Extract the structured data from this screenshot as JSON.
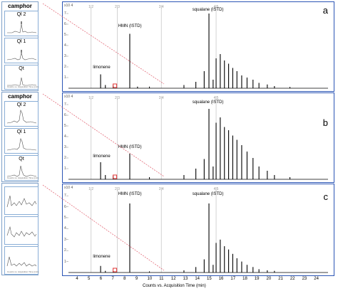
{
  "insets": {
    "group_a": {
      "title": "camphor",
      "boxes": [
        {
          "label": "Ql 2"
        },
        {
          "label": "Ql 1"
        },
        {
          "label": "Qt"
        }
      ],
      "axis_caption": "Counts vs. Acquisition Time (min)"
    },
    "group_b": {
      "title": "camphor",
      "boxes": [
        {
          "label": "Ql 2"
        },
        {
          "label": "Ql 1"
        },
        {
          "label": "Qt"
        }
      ],
      "axis_caption": "Counts vs. Acquisition Time (min)"
    },
    "group_c": {
      "title": "",
      "boxes": [
        {
          "label": ""
        },
        {
          "label": ""
        },
        {
          "label": ""
        }
      ],
      "axis_caption": "Counts vs. Acquisition Time (min)"
    }
  },
  "colors": {
    "panel_border": "#2b55b5",
    "inset_border": "#8aaed6",
    "connector": "#e05a6a",
    "marker": "#e03030",
    "trace": "#000000",
    "marker_line": "#c8c8c8"
  },
  "chart_data": [
    {
      "type": "line",
      "panel_letter": "a",
      "y_unit": "x10 4",
      "y_ticks": [
        "7",
        "6",
        "5",
        "4",
        "3",
        "2",
        "1"
      ],
      "x_range": [
        3.2,
        25.0
      ],
      "y_range": [
        0,
        7.4
      ],
      "time_markers": [
        {
          "x": 5.1,
          "label": "1|2"
        },
        {
          "x": 7.3,
          "label": "2|3"
        },
        {
          "x": 11.0,
          "label": "3|4"
        },
        {
          "x": 15.6,
          "label": "4|5"
        }
      ],
      "annotations": [
        {
          "text": "limonene",
          "x": 6.0,
          "y": 1.6
        },
        {
          "text": "HMN (ISTD)",
          "x": 8.3,
          "y": 5.5
        },
        {
          "text": "squalane (ISTD)",
          "x": 15.0,
          "y": 7.0
        }
      ],
      "peaks": [
        [
          5.9,
          1.3
        ],
        [
          6.3,
          0.3
        ],
        [
          6.95,
          0.25
        ],
        [
          8.35,
          5.1
        ],
        [
          9.0,
          0.15
        ],
        [
          10.0,
          0.15
        ],
        [
          12.9,
          0.3
        ],
        [
          13.9,
          0.6
        ],
        [
          14.6,
          1.6
        ],
        [
          15.0,
          7.0
        ],
        [
          15.35,
          0.8
        ],
        [
          15.6,
          2.8
        ],
        [
          15.95,
          3.2
        ],
        [
          16.3,
          2.6
        ],
        [
          16.65,
          2.3
        ],
        [
          17.0,
          1.9
        ],
        [
          17.35,
          1.6
        ],
        [
          17.75,
          1.2
        ],
        [
          18.2,
          1.0
        ],
        [
          18.7,
          0.8
        ],
        [
          19.2,
          0.5
        ],
        [
          19.9,
          0.35
        ],
        [
          20.5,
          0.2
        ],
        [
          21.8,
          0.12
        ]
      ]
    },
    {
      "type": "line",
      "panel_letter": "b",
      "y_unit": "x10 4",
      "y_ticks": [
        "7",
        "6",
        "5",
        "4",
        "3",
        "2",
        "1"
      ],
      "x_range": [
        3.2,
        25.0
      ],
      "y_range": [
        0,
        7.4
      ],
      "time_markers": [
        {
          "x": 5.1,
          "label": "1|2"
        },
        {
          "x": 7.3,
          "label": "2|3"
        },
        {
          "x": 11.0,
          "label": "3|4"
        },
        {
          "x": 15.6,
          "label": "4|5"
        }
      ],
      "annotations": [
        {
          "text": "limonene",
          "x": 6.0,
          "y": 1.8
        },
        {
          "text": "HMN (ISTD)",
          "x": 8.3,
          "y": 2.7
        },
        {
          "text": "squalane (ISTD)",
          "x": 15.0,
          "y": 6.9
        }
      ],
      "peaks": [
        [
          5.9,
          1.6
        ],
        [
          6.3,
          0.4
        ],
        [
          6.95,
          0.3
        ],
        [
          8.35,
          2.4
        ],
        [
          10.0,
          0.2
        ],
        [
          12.9,
          0.4
        ],
        [
          13.9,
          1.0
        ],
        [
          14.6,
          1.9
        ],
        [
          15.0,
          6.6
        ],
        [
          15.35,
          1.2
        ],
        [
          15.6,
          5.3
        ],
        [
          15.95,
          5.8
        ],
        [
          16.3,
          4.9
        ],
        [
          16.65,
          4.6
        ],
        [
          17.0,
          4.1
        ],
        [
          17.35,
          3.7
        ],
        [
          17.75,
          3.2
        ],
        [
          18.2,
          2.6
        ],
        [
          18.7,
          2.0
        ],
        [
          19.2,
          1.2
        ],
        [
          19.9,
          0.8
        ],
        [
          20.5,
          0.4
        ],
        [
          21.8,
          0.2
        ]
      ]
    },
    {
      "type": "line",
      "panel_letter": "c",
      "y_unit": "x10 4",
      "y_ticks": [
        "7",
        "6",
        "5",
        "4",
        "3",
        "2",
        "1"
      ],
      "x_range": [
        3.2,
        25.0
      ],
      "x_ticks": [
        "4",
        "5",
        "6",
        "7",
        "8",
        "9",
        "10",
        "11",
        "12",
        "13",
        "14",
        "15",
        "16",
        "17",
        "18",
        "19",
        "20",
        "21",
        "22",
        "23",
        "24"
      ],
      "xlabel": "Counts vs. Acquisition Time (min)",
      "y_range": [
        0,
        7.4
      ],
      "time_markers": [
        {
          "x": 5.1,
          "label": "1|2"
        },
        {
          "x": 7.3,
          "label": "2|3"
        },
        {
          "x": 11.0,
          "label": "3|4"
        },
        {
          "x": 15.6,
          "label": "4|5"
        }
      ],
      "annotations": [
        {
          "text": "limonene",
          "x": 6.0,
          "y": 1.1
        },
        {
          "text": "HMN (ISTD)",
          "x": 8.3,
          "y": 6.8
        },
        {
          "text": "squalane (ISTD)",
          "x": 15.0,
          "y": 6.8
        }
      ],
      "peaks": [
        [
          5.9,
          0.6
        ],
        [
          6.3,
          0.15
        ],
        [
          6.95,
          0.12
        ],
        [
          8.35,
          6.3
        ],
        [
          10.0,
          0.1
        ],
        [
          12.9,
          0.2
        ],
        [
          13.9,
          0.5
        ],
        [
          14.6,
          1.2
        ],
        [
          15.0,
          6.3
        ],
        [
          15.35,
          0.7
        ],
        [
          15.6,
          2.7
        ],
        [
          15.95,
          3.0
        ],
        [
          16.3,
          2.4
        ],
        [
          16.65,
          2.1
        ],
        [
          17.0,
          1.7
        ],
        [
          17.35,
          1.3
        ],
        [
          17.75,
          1.0
        ],
        [
          18.2,
          0.7
        ],
        [
          18.7,
          0.5
        ],
        [
          19.2,
          0.3
        ],
        [
          19.9,
          0.2
        ],
        [
          20.5,
          0.15
        ]
      ]
    }
  ]
}
